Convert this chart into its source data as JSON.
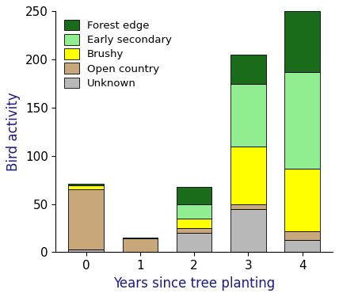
{
  "years": [
    0,
    1,
    2,
    3,
    4
  ],
  "categories": [
    "Unknown",
    "Open country",
    "Brushy",
    "Early secondary",
    "Forest edge"
  ],
  "colors": [
    "#b8b8b8",
    "#c8a87a",
    "#ffff00",
    "#90ee90",
    "#1a6b1a"
  ],
  "values": {
    "Unknown": [
      3,
      0,
      20,
      45,
      13
    ],
    "Open country": [
      62,
      14,
      5,
      5,
      9
    ],
    "Brushy": [
      4,
      0,
      10,
      60,
      65
    ],
    "Early secondary": [
      0,
      0,
      15,
      65,
      100
    ],
    "Forest edge": [
      2,
      1,
      18,
      30,
      63
    ]
  },
  "xlabel": "Years since tree planting",
  "ylabel": "Bird activity",
  "ylim": [
    0,
    250
  ],
  "yticks": [
    0,
    50,
    100,
    150,
    200,
    250
  ],
  "bar_width": 0.65,
  "background_color": "#ffffff",
  "axis_text_color": "#1a1a8c",
  "label_color": "#000000",
  "tick_color": "#000000",
  "font_size": 12,
  "tick_font_size": 11
}
